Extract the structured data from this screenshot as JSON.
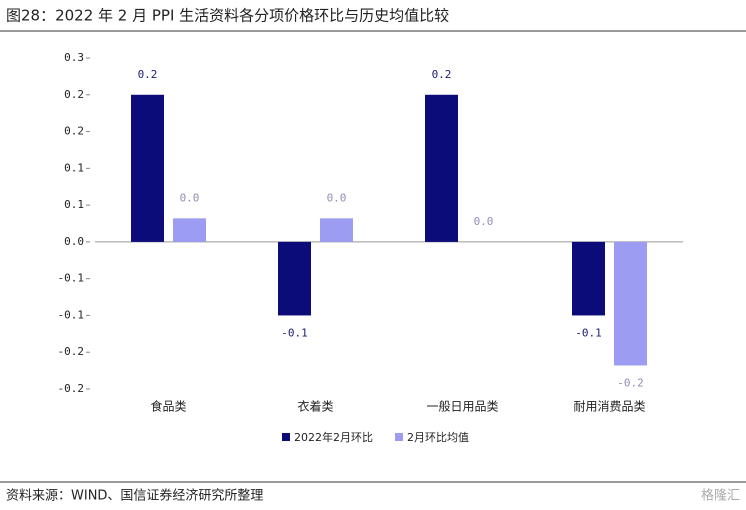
{
  "chart_data": {
    "type": "bar",
    "title": "图28：2022 年 2 月 PPI 生活资料各分项价格环比与历史均值比较",
    "source": "资料来源：WIND、国信证券经济研究所整理",
    "watermark": "格隆汇",
    "categories": [
      "食品类",
      "衣着类",
      "一般日用品类",
      "耐用消费品类"
    ],
    "series": [
      {
        "name": "2022年2月环比",
        "color": "#0b0b7a",
        "label_color": "#1c1c6e",
        "values": [
          0.2,
          -0.1,
          0.2,
          -0.1
        ]
      },
      {
        "name": "2月环比均值",
        "color": "#9c9cf2",
        "label_color": "#8f8fb5",
        "values": [
          0.032,
          0.032,
          0,
          -0.168
        ],
        "value_labels": [
          "0.0",
          "0.0",
          "0.0",
          "-0.2"
        ]
      }
    ],
    "ylim": [
      -0.2,
      0.25
    ],
    "yticks": [
      {
        "value": 0.25,
        "label": "0.3"
      },
      0.2,
      {
        "value": 0.15,
        "label": "0.2"
      },
      0.1,
      {
        "value": 0.05,
        "label": "0.1"
      },
      {
        "value": 0,
        "label": "0.0"
      },
      {
        "value": -0.05,
        "label": "-0.1"
      },
      -0.1,
      {
        "value": -0.15,
        "label": "-0.2"
      },
      -0.2
    ],
    "legend": "bottom"
  }
}
